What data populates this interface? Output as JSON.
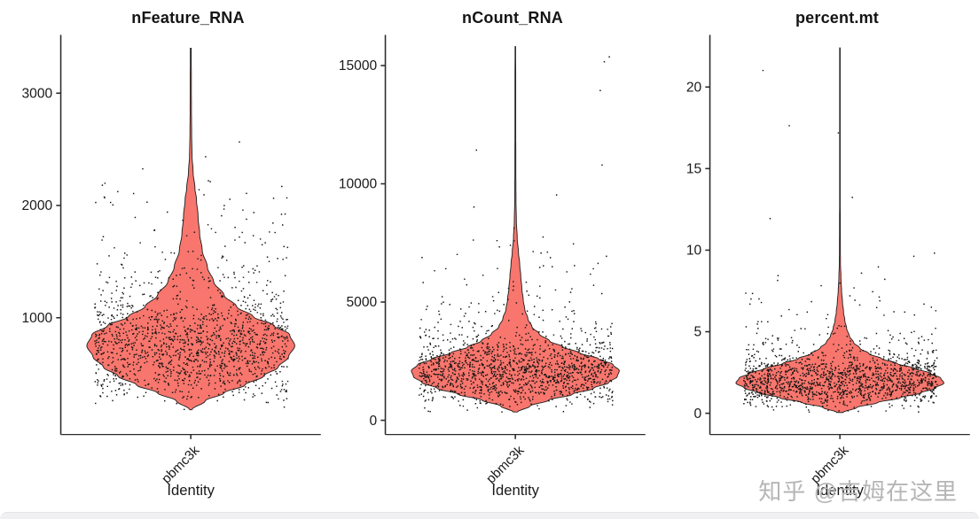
{
  "figure": {
    "watermark": "知乎 @吉姆在这里"
  },
  "colors": {
    "violin_fill": "#F8766D",
    "violin_stroke": "#222222",
    "point": "#141414",
    "axis": "#2b2b2b",
    "text": "#1a1a1a",
    "background": "#ffffff",
    "watermark": "#b6b6b6"
  },
  "chart_data": [
    {
      "type": "violin",
      "title": "nFeature_RNA",
      "xlabel": "Identity",
      "categories": [
        "pbmc3k"
      ],
      "ylim": [
        -40,
        3520
      ],
      "yticks": [
        1000,
        2000,
        3000
      ],
      "grid": false,
      "legend": "none",
      "points_n": 1500,
      "seed": 7,
      "density_profile": [
        [
          180,
          0.01
        ],
        [
          260,
          0.14
        ],
        [
          330,
          0.32
        ],
        [
          400,
          0.52
        ],
        [
          480,
          0.7
        ],
        [
          560,
          0.84
        ],
        [
          650,
          0.94
        ],
        [
          750,
          1.0
        ],
        [
          850,
          0.95
        ],
        [
          930,
          0.8
        ],
        [
          1010,
          0.6
        ],
        [
          1100,
          0.44
        ],
        [
          1200,
          0.32
        ],
        [
          1320,
          0.22
        ],
        [
          1450,
          0.16
        ],
        [
          1600,
          0.11
        ],
        [
          1750,
          0.085
        ],
        [
          1900,
          0.07
        ],
        [
          2050,
          0.055
        ],
        [
          2150,
          0.04
        ],
        [
          2300,
          0.022
        ],
        [
          2450,
          0.012
        ],
        [
          2650,
          0.008
        ],
        [
          2900,
          0.006
        ],
        [
          3150,
          0.005
        ],
        [
          3400,
          0.004
        ]
      ]
    },
    {
      "type": "violin",
      "title": "nCount_RNA",
      "xlabel": "Identity",
      "categories": [
        "pbmc3k"
      ],
      "ylim": [
        -600,
        16300
      ],
      "yticks": [
        0,
        5000,
        10000,
        15000
      ],
      "grid": false,
      "legend": "none",
      "points_n": 1500,
      "seed": 21,
      "density_profile": [
        [
          350,
          0.02
        ],
        [
          600,
          0.14
        ],
        [
          850,
          0.32
        ],
        [
          1100,
          0.55
        ],
        [
          1350,
          0.75
        ],
        [
          1600,
          0.9
        ],
        [
          1850,
          0.98
        ],
        [
          2100,
          1.0
        ],
        [
          2350,
          0.94
        ],
        [
          2600,
          0.8
        ],
        [
          2850,
          0.62
        ],
        [
          3100,
          0.46
        ],
        [
          3350,
          0.33
        ],
        [
          3650,
          0.23
        ],
        [
          3950,
          0.16
        ],
        [
          4300,
          0.12
        ],
        [
          4700,
          0.09
        ],
        [
          5100,
          0.075
        ],
        [
          5600,
          0.062
        ],
        [
          6100,
          0.052
        ],
        [
          6600,
          0.042
        ],
        [
          7100,
          0.03
        ],
        [
          7700,
          0.018
        ],
        [
          8400,
          0.01
        ],
        [
          9300,
          0.006
        ],
        [
          10500,
          0.0045
        ],
        [
          12500,
          0.0035
        ],
        [
          15800,
          0.003
        ]
      ]
    },
    {
      "type": "violin",
      "title": "percent.mt",
      "xlabel": "Identity",
      "categories": [
        "pbmc3k"
      ],
      "ylim": [
        -1.3,
        23.2
      ],
      "yticks": [
        0,
        5,
        10,
        15,
        20
      ],
      "grid": false,
      "legend": "none",
      "points_n": 1500,
      "seed": 33,
      "density_profile": [
        [
          0.05,
          0.03
        ],
        [
          0.35,
          0.16
        ],
        [
          0.65,
          0.36
        ],
        [
          0.95,
          0.58
        ],
        [
          1.25,
          0.78
        ],
        [
          1.55,
          0.92
        ],
        [
          1.85,
          1.0
        ],
        [
          2.15,
          0.97
        ],
        [
          2.45,
          0.87
        ],
        [
          2.75,
          0.72
        ],
        [
          3.05,
          0.55
        ],
        [
          3.35,
          0.4
        ],
        [
          3.65,
          0.28
        ],
        [
          4.0,
          0.19
        ],
        [
          4.35,
          0.13
        ],
        [
          4.75,
          0.09
        ],
        [
          5.2,
          0.065
        ],
        [
          5.7,
          0.047
        ],
        [
          6.2,
          0.035
        ],
        [
          6.8,
          0.025
        ],
        [
          7.5,
          0.016
        ],
        [
          8.3,
          0.01
        ],
        [
          9.3,
          0.005
        ],
        [
          10.5,
          0.004
        ],
        [
          13.0,
          0.003
        ],
        [
          17.0,
          0.0025
        ],
        [
          22.4,
          0.0025
        ]
      ]
    }
  ]
}
